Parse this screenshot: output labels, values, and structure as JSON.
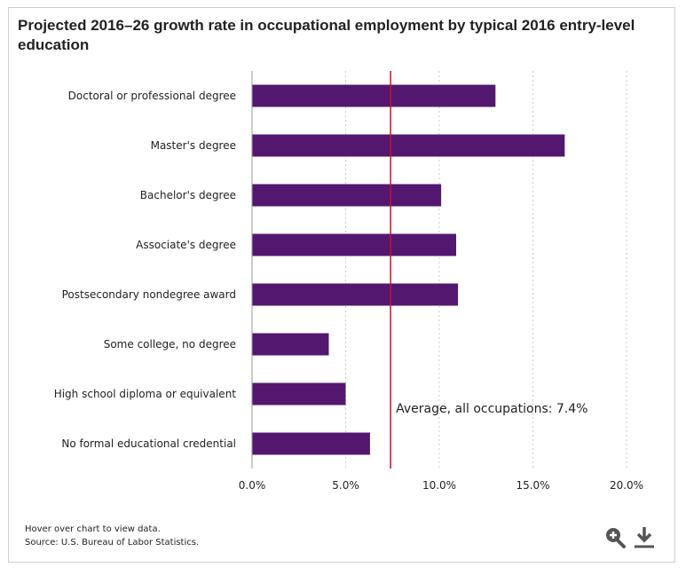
{
  "chart_title": "Projected 2016–26 growth rate in occupational employment by typical 2016 entry-level education",
  "footer": {
    "hint": "Hover over chart to view data.",
    "source": "Source: U.S. Bureau of Labor Statistics."
  },
  "average_line": {
    "label": "Average, all occupations: 7.4%",
    "value": 7.4,
    "color": "#c8102e"
  },
  "toolbar": {
    "zoom_icon": "zoom-in-icon",
    "download_icon": "download-icon"
  },
  "chart_data": {
    "type": "bar",
    "orientation": "horizontal",
    "title": "Projected 2016–26 growth rate in occupational employment by typical 2016 entry-level education",
    "categories": [
      "Doctoral or professional degree",
      "Master's degree",
      "Bachelor's degree",
      "Associate's degree",
      "Postsecondary nondegree award",
      "Some college, no degree",
      "High school diploma or equivalent",
      "No formal educational credential"
    ],
    "values": [
      13.0,
      16.7,
      10.1,
      10.9,
      11.0,
      4.1,
      5.0,
      6.3
    ],
    "unit": "%",
    "xlim": [
      0,
      20
    ],
    "ticks": [
      0,
      5,
      10,
      15,
      20
    ],
    "tick_labels": [
      "0.0%",
      "5.0%",
      "10.0%",
      "15.0%",
      "20.0%"
    ],
    "grid": "vertical dotted",
    "bar_color": "#541770"
  }
}
